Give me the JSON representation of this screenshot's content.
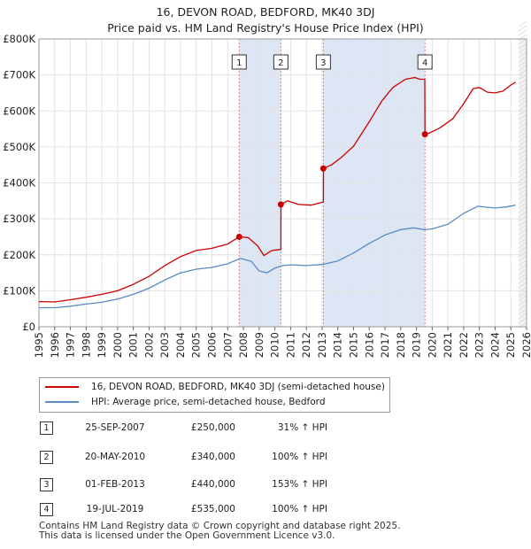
{
  "header": {
    "title": "16, DEVON ROAD, BEDFORD, MK40 3DJ",
    "subtitle": "Price paid vs. HM Land Registry's House Price Index (HPI)"
  },
  "chart_data": {
    "type": "line",
    "xlim": [
      1995,
      2026
    ],
    "ylim": [
      0,
      800000
    ],
    "x_ticks": [
      "1995",
      "1996",
      "1997",
      "1998",
      "1999",
      "2000",
      "2001",
      "2002",
      "2003",
      "2004",
      "2005",
      "2006",
      "2007",
      "2008",
      "2009",
      "2010",
      "2011",
      "2012",
      "2013",
      "2014",
      "2015",
      "2016",
      "2017",
      "2018",
      "2019",
      "2020",
      "2021",
      "2022",
      "2023",
      "2024",
      "2025",
      "2026"
    ],
    "y_ticks": [
      {
        "value": 0,
        "label": "£0"
      },
      {
        "value": 100000,
        "label": "£100K"
      },
      {
        "value": 200000,
        "label": "£200K"
      },
      {
        "value": 300000,
        "label": "£300K"
      },
      {
        "value": 400000,
        "label": "£400K"
      },
      {
        "value": 500000,
        "label": "£500K"
      },
      {
        "value": 600000,
        "label": "£600K"
      },
      {
        "value": 700000,
        "label": "£700K"
      },
      {
        "value": 800000,
        "label": "£800K"
      }
    ],
    "series": [
      {
        "name": "16, DEVON ROAD, BEDFORD, MK40 3DJ (semi-detached house)",
        "color": "#cc0000",
        "points": [
          [
            1995.0,
            70000
          ],
          [
            1996.0,
            69000
          ],
          [
            1997.0,
            75000
          ],
          [
            1998.0,
            82000
          ],
          [
            1999.0,
            90000
          ],
          [
            2000.0,
            100000
          ],
          [
            2001.0,
            118000
          ],
          [
            2002.0,
            140000
          ],
          [
            2003.0,
            170000
          ],
          [
            2004.0,
            195000
          ],
          [
            2005.0,
            212000
          ],
          [
            2006.0,
            218000
          ],
          [
            2007.0,
            230000
          ],
          [
            2007.73,
            250000
          ],
          [
            2008.3,
            248000
          ],
          [
            2008.9,
            225000
          ],
          [
            2009.3,
            198000
          ],
          [
            2009.8,
            212000
          ],
          [
            2010.38,
            215000
          ],
          [
            2010.39,
            340000
          ],
          [
            2010.8,
            350000
          ],
          [
            2011.5,
            340000
          ],
          [
            2012.3,
            338000
          ],
          [
            2013.08,
            347000
          ],
          [
            2013.09,
            440000
          ],
          [
            2013.6,
            450000
          ],
          [
            2014.2,
            470000
          ],
          [
            2015.0,
            502000
          ],
          [
            2016.0,
            570000
          ],
          [
            2016.8,
            628000
          ],
          [
            2017.5,
            665000
          ],
          [
            2018.3,
            688000
          ],
          [
            2018.9,
            693000
          ],
          [
            2019.2,
            688000
          ],
          [
            2019.53,
            688000
          ],
          [
            2019.54,
            535000
          ],
          [
            2019.9,
            540000
          ],
          [
            2020.5,
            553000
          ],
          [
            2021.3,
            578000
          ],
          [
            2022.0,
            620000
          ],
          [
            2022.6,
            662000
          ],
          [
            2023.0,
            665000
          ],
          [
            2023.5,
            652000
          ],
          [
            2024.0,
            650000
          ],
          [
            2024.5,
            655000
          ],
          [
            2025.0,
            672000
          ],
          [
            2025.3,
            680000
          ]
        ]
      },
      {
        "name": "HPI: Average price, semi-detached house, Bedford",
        "color": "#5b8ac4",
        "points": [
          [
            1995.0,
            53000
          ],
          [
            1996.0,
            53000
          ],
          [
            1997.0,
            57000
          ],
          [
            1998.0,
            63000
          ],
          [
            1999.0,
            68000
          ],
          [
            2000.0,
            77000
          ],
          [
            2001.0,
            90000
          ],
          [
            2002.0,
            107000
          ],
          [
            2003.0,
            130000
          ],
          [
            2004.0,
            150000
          ],
          [
            2005.0,
            160000
          ],
          [
            2006.0,
            165000
          ],
          [
            2007.0,
            175000
          ],
          [
            2007.8,
            190000
          ],
          [
            2008.5,
            182000
          ],
          [
            2009.0,
            155000
          ],
          [
            2009.5,
            150000
          ],
          [
            2010.0,
            163000
          ],
          [
            2010.5,
            170000
          ],
          [
            2011.0,
            172000
          ],
          [
            2012.0,
            170000
          ],
          [
            2013.0,
            173000
          ],
          [
            2014.0,
            183000
          ],
          [
            2015.0,
            205000
          ],
          [
            2016.0,
            232000
          ],
          [
            2017.0,
            255000
          ],
          [
            2018.0,
            270000
          ],
          [
            2018.8,
            275000
          ],
          [
            2019.5,
            270000
          ],
          [
            2020.0,
            272000
          ],
          [
            2021.0,
            285000
          ],
          [
            2022.0,
            315000
          ],
          [
            2022.9,
            335000
          ],
          [
            2023.5,
            332000
          ],
          [
            2024.0,
            330000
          ],
          [
            2024.7,
            333000
          ],
          [
            2025.3,
            338000
          ]
        ]
      }
    ],
    "sales": [
      {
        "num": "1",
        "x": 2007.73,
        "y": 250000
      },
      {
        "num": "2",
        "x": 2010.38,
        "y": 340000
      },
      {
        "num": "3",
        "x": 2013.08,
        "y": 440000
      },
      {
        "num": "4",
        "x": 2019.54,
        "y": 535000
      }
    ],
    "forecast_start": 2025.5
  },
  "legend": {
    "property_label": "16, DEVON ROAD, BEDFORD, MK40 3DJ (semi-detached house)",
    "hpi_label": "HPI: Average price, semi-detached house, Bedford",
    "property_color": "#cc0000",
    "hpi_color": "#5b8ac4"
  },
  "sales_table": [
    {
      "num": "1",
      "date": "25-SEP-2007",
      "price": "£250,000",
      "pct": "31% ↑ HPI"
    },
    {
      "num": "2",
      "date": "20-MAY-2010",
      "price": "£340,000",
      "pct": "100% ↑ HPI"
    },
    {
      "num": "3",
      "date": "01-FEB-2013",
      "price": "£440,000",
      "pct": "153% ↑ HPI"
    },
    {
      "num": "4",
      "date": "19-JUL-2019",
      "price": "£535,000",
      "pct": "100% ↑ HPI"
    }
  ],
  "footer": {
    "line1": "Contains HM Land Registry data © Crown copyright and database right 2025.",
    "line2": "This data is licensed under the Open Government Licence v3.0."
  }
}
